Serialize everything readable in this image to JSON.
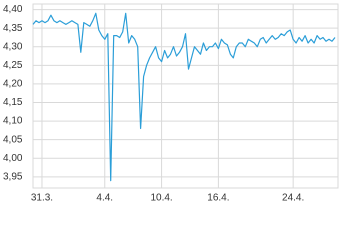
{
  "chart_data": {
    "type": "line",
    "categories": [
      null,
      null,
      null,
      "31.3.",
      null,
      null,
      null,
      null,
      null,
      null,
      null,
      null,
      null,
      null,
      null,
      null,
      null,
      null,
      null,
      null,
      null,
      null,
      null,
      null,
      "4.4.",
      null,
      null,
      null,
      null,
      null,
      null,
      null,
      null,
      null,
      null,
      null,
      null,
      null,
      null,
      null,
      null,
      null,
      null,
      "10.4.",
      null,
      null,
      null,
      null,
      null,
      null,
      null,
      null,
      null,
      null,
      null,
      null,
      null,
      null,
      null,
      null,
      null,
      null,
      "16.4.",
      null,
      null,
      null,
      null,
      null,
      null,
      null,
      null,
      null,
      null,
      null,
      null,
      null,
      null,
      null,
      null,
      null,
      null,
      null,
      null,
      null,
      null,
      null,
      null,
      "24.4.",
      null,
      null,
      null,
      null,
      null,
      null,
      null,
      null,
      null,
      null,
      null,
      null,
      null,
      null
    ],
    "series": [
      {
        "color": "#2b9ed8",
        "values": [
          4.36,
          4.37,
          4.365,
          4.37,
          4.365,
          4.37,
          4.385,
          4.37,
          4.365,
          4.37,
          4.365,
          4.36,
          4.365,
          4.37,
          4.365,
          4.36,
          4.285,
          4.365,
          4.36,
          4.355,
          4.37,
          4.39,
          4.345,
          4.33,
          4.32,
          4.335,
          3.94,
          4.33,
          4.33,
          4.325,
          4.34,
          4.39,
          4.31,
          4.33,
          4.32,
          4.3,
          4.08,
          4.22,
          4.25,
          4.27,
          4.285,
          4.3,
          4.27,
          4.26,
          4.29,
          4.27,
          4.28,
          4.3,
          4.275,
          4.285,
          4.3,
          4.335,
          4.24,
          4.27,
          4.3,
          4.29,
          4.28,
          4.31,
          4.29,
          4.3,
          4.3,
          4.31,
          4.295,
          4.32,
          4.31,
          4.305,
          4.28,
          4.27,
          4.3,
          4.31,
          4.31,
          4.3,
          4.32,
          4.315,
          4.31,
          4.3,
          4.32,
          4.325,
          4.31,
          4.32,
          4.33,
          4.32,
          4.325,
          4.335,
          4.33,
          4.34,
          4.345,
          4.32,
          4.31,
          4.325,
          4.315,
          4.33,
          4.31,
          4.32,
          4.31,
          4.33,
          4.32,
          4.325,
          4.315,
          4.32,
          4.315,
          4.325
        ]
      }
    ],
    "ylim": [
      3.92,
      4.415
    ],
    "yticks": [
      {
        "value": 3.95,
        "label": "3,95"
      },
      {
        "value": 4.0,
        "label": "4,00"
      },
      {
        "value": 4.05,
        "label": "4,05"
      },
      {
        "value": 4.1,
        "label": "4,10"
      },
      {
        "value": 4.15,
        "label": "4,15"
      },
      {
        "value": 4.2,
        "label": "4,20"
      },
      {
        "value": 4.25,
        "label": "4,25"
      },
      {
        "value": 4.3,
        "label": "4,30"
      },
      {
        "value": 4.35,
        "label": "4,35"
      },
      {
        "value": 4.4,
        "label": "4,40"
      }
    ],
    "grid": true
  }
}
